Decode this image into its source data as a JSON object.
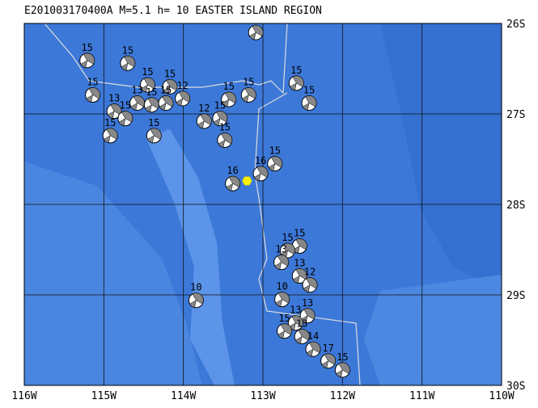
{
  "map": {
    "title": "E201003170400A M=5.1 h= 10 EASTER ISLAND REGION",
    "lonlim": [
      -116,
      -110
    ],
    "latlim": [
      -26,
      -30
    ],
    "xticks": [
      {
        "value": -116,
        "label": "116W"
      },
      {
        "value": -115,
        "label": "115W"
      },
      {
        "value": -114,
        "label": "114W"
      },
      {
        "value": -113,
        "label": "113W"
      },
      {
        "value": -112,
        "label": "112W"
      },
      {
        "value": -111,
        "label": "111W"
      },
      {
        "value": -110,
        "label": "110W"
      }
    ],
    "yticks": [
      {
        "value": -26,
        "label": "26S"
      },
      {
        "value": -27,
        "label": "27S"
      },
      {
        "value": -28,
        "label": "28S"
      },
      {
        "value": -29,
        "label": "29S"
      },
      {
        "value": -30,
        "label": "30S"
      }
    ],
    "main_event": {
      "lon": -113.2,
      "lat": -27.74
    },
    "events": [
      {
        "lon": -113.09,
        "lat": -26.1,
        "depth": 15
      },
      {
        "lon": -115.21,
        "lat": -26.41,
        "depth": 15
      },
      {
        "lon": -114.7,
        "lat": -26.44,
        "depth": 15
      },
      {
        "lon": -115.14,
        "lat": -26.79,
        "depth": 15
      },
      {
        "lon": -114.45,
        "lat": -26.68,
        "depth": 15
      },
      {
        "lon": -114.17,
        "lat": -26.7,
        "depth": 15
      },
      {
        "lon": -114.01,
        "lat": -26.83,
        "depth": 12
      },
      {
        "lon": -114.87,
        "lat": -26.97,
        "depth": 13
      },
      {
        "lon": -114.73,
        "lat": -27.05,
        "depth": 15
      },
      {
        "lon": -114.92,
        "lat": -27.24,
        "depth": 15
      },
      {
        "lon": -114.37,
        "lat": -27.24,
        "depth": 15
      },
      {
        "lon": -114.58,
        "lat": -26.88,
        "depth": 13
      },
      {
        "lon": -114.4,
        "lat": -26.9,
        "depth": 15
      },
      {
        "lon": -114.22,
        "lat": -26.88,
        "depth": 15
      },
      {
        "lon": -113.74,
        "lat": -27.08,
        "depth": 12
      },
      {
        "lon": -113.43,
        "lat": -26.84,
        "depth": 15
      },
      {
        "lon": -113.18,
        "lat": -26.79,
        "depth": 15
      },
      {
        "lon": -113.54,
        "lat": -27.05,
        "depth": 15
      },
      {
        "lon": -113.48,
        "lat": -27.29,
        "depth": 15
      },
      {
        "lon": -112.58,
        "lat": -26.66,
        "depth": 15
      },
      {
        "lon": -112.42,
        "lat": -26.88,
        "depth": 15
      },
      {
        "lon": -112.85,
        "lat": -27.55,
        "depth": 15
      },
      {
        "lon": -113.03,
        "lat": -27.66,
        "depth": 16
      },
      {
        "lon": -113.38,
        "lat": -27.77,
        "depth": 16
      },
      {
        "lon": -112.54,
        "lat": -28.46,
        "depth": 15
      },
      {
        "lon": -112.69,
        "lat": -28.51,
        "depth": 15
      },
      {
        "lon": -112.77,
        "lat": -28.64,
        "depth": 13
      },
      {
        "lon": -112.54,
        "lat": -28.79,
        "depth": 13
      },
      {
        "lon": -112.41,
        "lat": -28.89,
        "depth": 12
      },
      {
        "lon": -112.76,
        "lat": -29.05,
        "depth": 10
      },
      {
        "lon": -112.44,
        "lat": -29.23,
        "depth": 13
      },
      {
        "lon": -112.59,
        "lat": -29.31,
        "depth": 13
      },
      {
        "lon": -112.73,
        "lat": -29.4,
        "depth": 15
      },
      {
        "lon": -112.51,
        "lat": -29.46,
        "depth": 13
      },
      {
        "lon": -112.37,
        "lat": -29.6,
        "depth": 14
      },
      {
        "lon": -112.18,
        "lat": -29.73,
        "depth": 17
      },
      {
        "lon": -112.0,
        "lat": -29.83,
        "depth": 15
      },
      {
        "lon": -113.84,
        "lat": -29.06,
        "depth": 10
      }
    ]
  }
}
